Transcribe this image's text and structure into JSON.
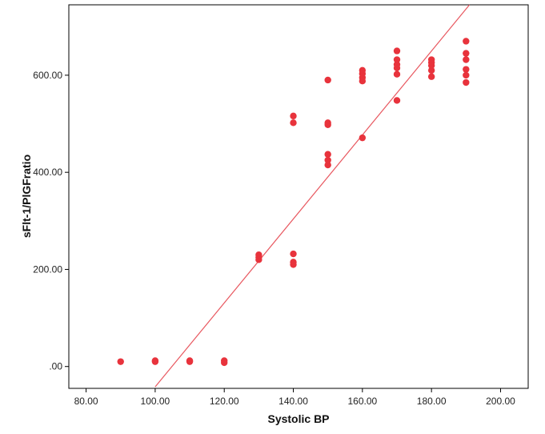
{
  "chart_data": {
    "type": "scatter",
    "title": "",
    "xlabel": "Systolic BP",
    "ylabel": "sFlt-1/PlGFratio",
    "xlim": [
      75,
      208
    ],
    "ylim": [
      -45,
      745
    ],
    "x_ticks": [
      80,
      100,
      120,
      140,
      160,
      180,
      200
    ],
    "x_tick_labels": [
      "80.00",
      "100.00",
      "120.00",
      "140.00",
      "160.00",
      "180.00",
      "200.00"
    ],
    "y_ticks": [
      0,
      200,
      400,
      600
    ],
    "y_tick_labels": [
      ".00",
      "200.00",
      "400.00",
      "600.00"
    ],
    "grid": false,
    "legend": "none",
    "point_color": "#e8333c",
    "line_color": "#e8575f",
    "series": [
      {
        "points": [
          [
            90,
            10
          ],
          [
            100,
            10
          ],
          [
            100,
            12
          ],
          [
            110,
            10
          ],
          [
            110,
            12
          ],
          [
            120,
            8
          ],
          [
            120,
            12
          ],
          [
            130,
            220
          ],
          [
            130,
            225
          ],
          [
            130,
            230
          ],
          [
            140,
            210
          ],
          [
            140,
            215
          ],
          [
            140,
            232
          ],
          [
            140,
            502
          ],
          [
            140,
            516
          ],
          [
            150,
            415
          ],
          [
            150,
            425
          ],
          [
            150,
            437
          ],
          [
            150,
            498
          ],
          [
            150,
            502
          ],
          [
            150,
            590
          ],
          [
            160,
            471
          ],
          [
            160,
            588
          ],
          [
            160,
            595
          ],
          [
            160,
            603
          ],
          [
            160,
            610
          ],
          [
            170,
            548
          ],
          [
            170,
            602
          ],
          [
            170,
            615
          ],
          [
            170,
            622
          ],
          [
            170,
            632
          ],
          [
            170,
            650
          ],
          [
            180,
            597
          ],
          [
            180,
            610
          ],
          [
            180,
            620
          ],
          [
            180,
            626
          ],
          [
            180,
            632
          ],
          [
            190,
            585
          ],
          [
            190,
            600
          ],
          [
            190,
            612
          ],
          [
            190,
            632
          ],
          [
            190,
            645
          ],
          [
            190,
            670
          ]
        ]
      }
    ],
    "fit_line": {
      "points": [
        [
          100,
          -42
        ],
        [
          191,
          745
        ]
      ]
    }
  }
}
